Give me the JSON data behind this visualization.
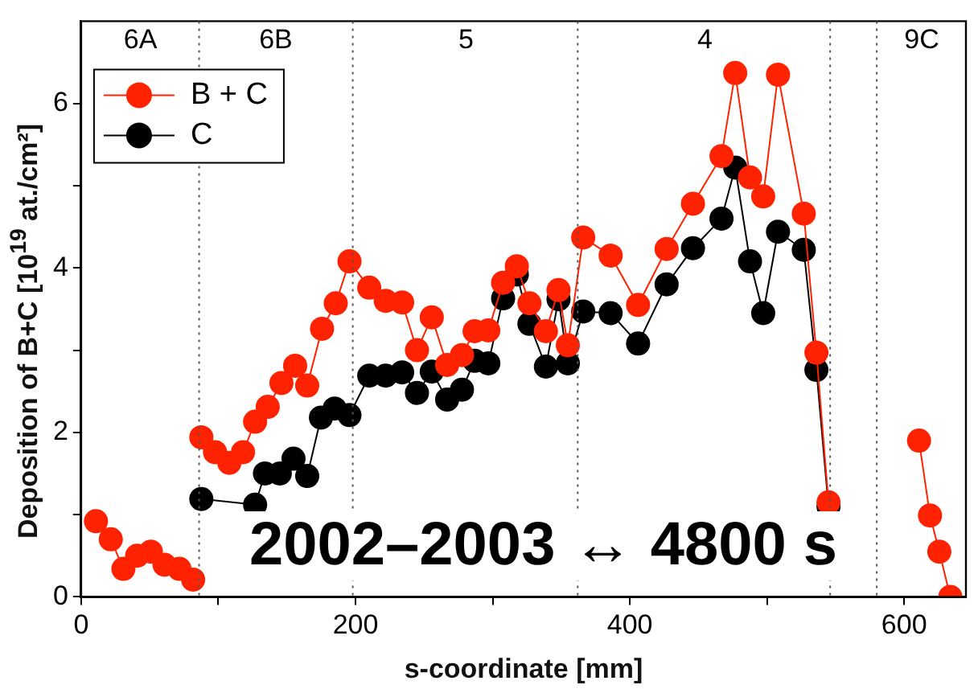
{
  "chart_data": {
    "type": "line",
    "xlabel": "s-coordinate [mm]",
    "ylabel": "Deposition of B+C [10$^{19}$ at./cm²]",
    "xlim": [
      0,
      645
    ],
    "ylim": [
      0,
      7
    ],
    "xticks": [
      0,
      {
        "value": 100,
        "label": null
      },
      200,
      {
        "value": 300,
        "label": null
      },
      400,
      {
        "value": 500,
        "label": null
      },
      600
    ],
    "yticks": [
      0,
      {
        "value": 1,
        "label": null
      },
      2,
      {
        "value": 3,
        "label": null
      },
      4,
      {
        "value": 5,
        "label": null
      },
      6
    ],
    "grid": false,
    "legend": "top left",
    "marker": "circle",
    "line_style": "solid",
    "series": [
      {
        "name": "B + C",
        "color": "#ff2200",
        "x": [
          10.8,
          21.6,
          30.8,
          40.8,
          50.8,
          60.8,
          71.6,
          81.6,
          84,
          87.6,
          97.6,
          108,
          118,
          126.8,
          136,
          146,
          156,
          164.8,
          175.6,
          185.6,
          195.6,
          210,
          222,
          234,
          244.8,
          255.6,
          266.8,
          277.6,
          286.8,
          296.8,
          307.6,
          317.6,
          326.8,
          338.8,
          348,
          354.8,
          366,
          386,
          406,
          426.8,
          446,
          466.8,
          476.8,
          487.6,
          497.2,
          508,
          526.8,
          536,
          544.8,
          580,
          610.8,
          618.8,
          625.6,
          633.6
        ],
        "values": [
          0.92,
          0.7,
          0.34,
          0.5,
          0.55,
          0.39,
          0.34,
          0.21,
          null,
          1.94,
          1.76,
          1.63,
          1.76,
          2.13,
          2.31,
          2.6,
          2.81,
          2.57,
          3.26,
          3.57,
          4.08,
          3.76,
          3.6,
          3.58,
          3.0,
          3.4,
          2.82,
          2.94,
          3.23,
          3.24,
          3.82,
          4.02,
          3.57,
          3.23,
          3.73,
          3.06,
          4.37,
          4.15,
          3.55,
          4.23,
          4.78,
          5.36,
          6.37,
          5.1,
          4.87,
          6.35,
          4.66,
          2.97,
          1.15,
          null,
          1.9,
          0.99,
          0.55,
          0
        ]
      },
      {
        "name": "C",
        "color": "#000000",
        "x": [
          87.6,
          126.8,
          134,
          144.8,
          154.8,
          164.8,
          174.8,
          184.8,
          195.6,
          210,
          222,
          234,
          244.8,
          255.6,
          266.8,
          277.6,
          286.8,
          296.8,
          307.6,
          317.6,
          326.8,
          338.8,
          348,
          354.8,
          366,
          386,
          406,
          426.8,
          446,
          466.8,
          476.8,
          487.6,
          497.2,
          508,
          526.8,
          536,
          544.8
        ],
        "values": [
          1.19,
          1.12,
          1.5,
          1.5,
          1.68,
          1.47,
          2.18,
          2.29,
          2.21,
          2.69,
          2.69,
          2.73,
          2.48,
          2.74,
          2.4,
          2.52,
          2.87,
          2.84,
          3.63,
          3.92,
          3.32,
          2.8,
          3.62,
          2.84,
          3.47,
          3.45,
          3.08,
          3.8,
          4.24,
          4.6,
          5.22,
          4.08,
          3.45,
          4.44,
          4.22,
          2.76,
          1.1
        ]
      }
    ],
    "ref_lines": [
      {
        "axis": "x",
        "value": 86,
        "color": "#555555",
        "line_style": "dotted"
      },
      {
        "axis": "x",
        "value": 198,
        "color": "#555555",
        "line_style": "dotted"
      },
      {
        "axis": "x",
        "value": 362,
        "color": "#555555",
        "line_style": "dotted"
      },
      {
        "axis": "x",
        "value": 546,
        "color": "#555555",
        "line_style": "dotted"
      },
      {
        "axis": "x",
        "value": 580,
        "color": "#555555",
        "line_style": "dotted"
      }
    ],
    "annotations": [
      "6A",
      "6B",
      "5",
      "4",
      "9C",
      "2002–2003 ↔ 4800 s"
    ]
  }
}
